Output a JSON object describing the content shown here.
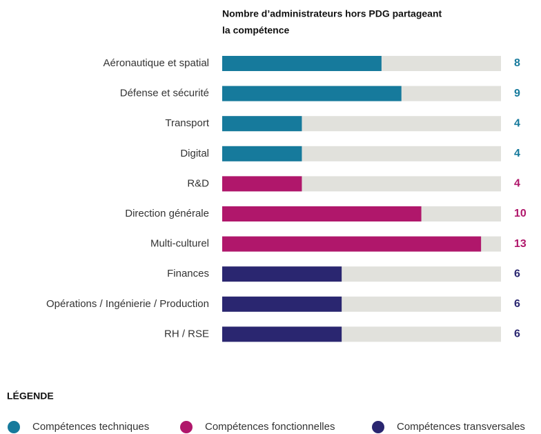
{
  "chart_data": {
    "type": "bar",
    "title": [
      "Nombre d’administrateurs hors PDG partageant",
      "la compétence"
    ],
    "categories": [
      "Aéronautique et spatial",
      "Défense et sécurité",
      "Transport",
      "Digital",
      "R&D",
      "Direction générale",
      "Multi-culturel",
      "Finances",
      "Opérations / Ingénierie / Production",
      "RH / RSE"
    ],
    "values": [
      8,
      9,
      4,
      4,
      4,
      10,
      13,
      6,
      6,
      6
    ],
    "colors": [
      "#167a9c",
      "#167a9c",
      "#167a9c",
      "#167a9c",
      "#b0176b",
      "#b0176b",
      "#b0176b",
      "#2a2670",
      "#2a2670",
      "#2a2670"
    ],
    "track_color": "#e1e1dc",
    "xlim": [
      0,
      14
    ],
    "legend_title": "LÉGENDE",
    "legend": [
      {
        "name": "Compétences techniques",
        "color": "#167a9c"
      },
      {
        "name": "Compétences fonctionnelles",
        "color": "#b0176b"
      },
      {
        "name": "Compétences transversales",
        "color": "#2a2670"
      }
    ]
  }
}
